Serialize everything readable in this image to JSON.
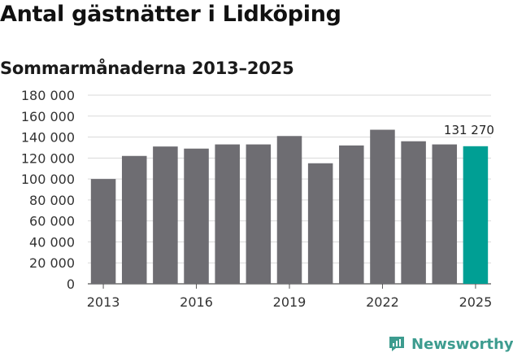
{
  "title": "Antal gästnätter i Lidköping",
  "subtitle": "Sommarmånaderna 2013–2025",
  "brand": {
    "name": "Newsworthy",
    "icon": "newsworthy-logo-icon",
    "color": "#3d9c8f"
  },
  "colors": {
    "bar": "#6e6d72",
    "highlight": "#009f94",
    "grid": "#d9d9d9"
  },
  "chart_data": {
    "type": "bar",
    "categories": [
      "2013",
      "2014",
      "2015",
      "2016",
      "2017",
      "2018",
      "2019",
      "2020",
      "2021",
      "2022",
      "2023",
      "2024",
      "2025"
    ],
    "values": [
      100000,
      122000,
      131000,
      129000,
      133000,
      133000,
      141000,
      115000,
      132000,
      147000,
      136000,
      133000,
      131270
    ],
    "ylim": [
      0,
      180000
    ],
    "yticks": [
      0,
      20000,
      40000,
      60000,
      80000,
      100000,
      120000,
      140000,
      160000,
      180000
    ],
    "ytick_labels": [
      "0",
      "20 000",
      "40 000",
      "60 000",
      "80 000",
      "100 000",
      "120 000",
      "140 000",
      "160 000",
      "180 000"
    ],
    "xtick_labels": [
      "2013",
      "2016",
      "2019",
      "2022",
      "2025"
    ],
    "highlight_category": "2025",
    "data_labels": [
      {
        "category": "2025",
        "text": "131 270"
      }
    ],
    "grid": true,
    "legend": "none"
  }
}
